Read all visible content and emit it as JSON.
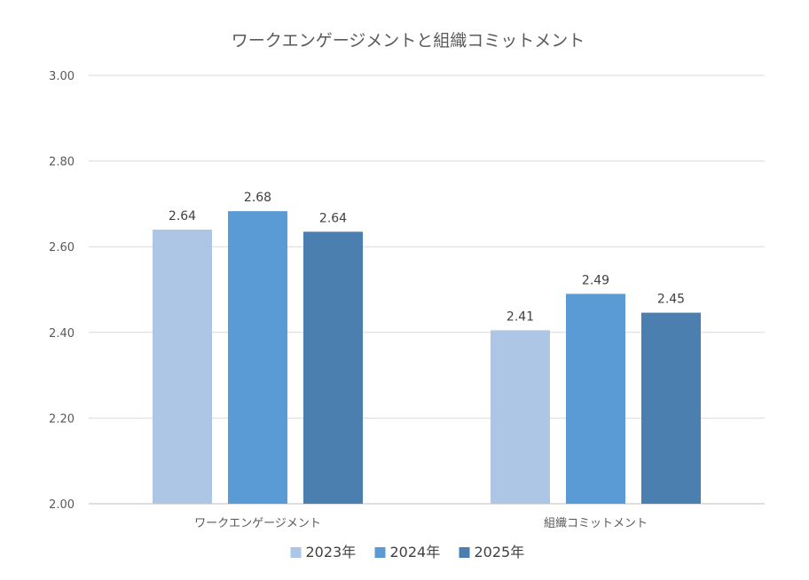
{
  "chart_data": {
    "type": "bar",
    "title": "ワークエンゲージメントと組織コミットメント",
    "xlabel": "",
    "ylabel": "",
    "ylim": [
      2.0,
      3.0
    ],
    "yticks": [
      "2.00",
      "2.20",
      "2.40",
      "2.60",
      "2.80",
      "3.00"
    ],
    "grid": true,
    "legend_position": "bottom",
    "categories": [
      "ワークエンゲージメント",
      "組織コミットメント"
    ],
    "series": [
      {
        "name": "2023年",
        "color": "#aec6e6",
        "values": [
          2.64,
          2.405
        ],
        "labels": [
          "2.64",
          "2.41"
        ]
      },
      {
        "name": "2024年",
        "color": "#5b9bd5",
        "values": [
          2.683,
          2.49
        ],
        "labels": [
          "2.68",
          "2.49"
        ]
      },
      {
        "name": "2025年",
        "color": "#4a7fb0",
        "values": [
          2.635,
          2.446
        ],
        "labels": [
          "2.64",
          "2.45"
        ]
      }
    ]
  }
}
